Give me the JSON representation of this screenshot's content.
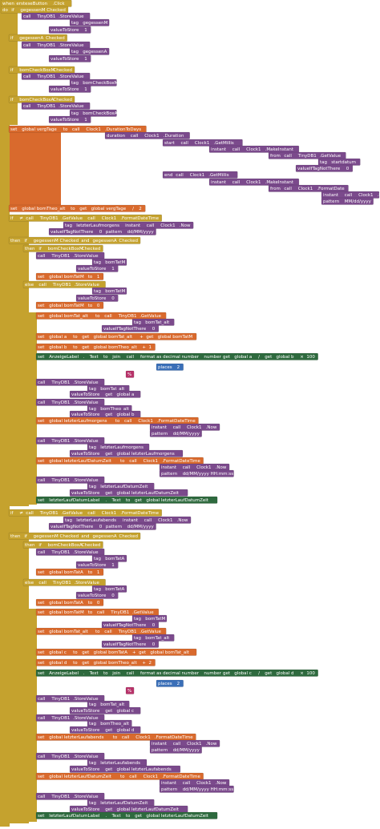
{
  "rows": [
    [
      "when",
      "ersteseButton",
      ".Click"
    ],
    [
      "do",
      "if",
      "gegessenM",
      "Checked"
    ],
    [
      "call",
      "TinyDB1",
      ".StoreValue"
    ],
    [
      "tag",
      "gegessenM"
    ],
    [
      "valueToStore",
      "1"
    ],
    [
      "if",
      "gegessenA",
      "Checked"
    ],
    [
      "call",
      "TinyDB1",
      ".StoreValue"
    ],
    [
      "tag",
      "gegessenA"
    ],
    [
      "valueToStore",
      "1"
    ],
    [
      "if",
      "bomCheckBoxM",
      "Checked"
    ],
    [
      "call",
      "TinyDB1",
      ".StoreValue"
    ],
    [
      "tag",
      "bomCheckBoxM"
    ],
    [
      "valueToStore",
      "1"
    ],
    [
      "if",
      "bomCheckBoxA",
      "Checked"
    ],
    [
      "call",
      "TinyDB1",
      ".StoreValue"
    ],
    [
      "tag",
      "bomCheckBoxA"
    ],
    [
      "valueToStore",
      "1"
    ],
    [
      "set",
      "global vergTage",
      "to",
      "call",
      "Clock1",
      ".DurationToDays"
    ],
    [
      "duration",
      "call",
      "Clock1",
      ".Duration"
    ],
    [
      "start",
      "call",
      "Clock1",
      ".GetMillis"
    ],
    [
      "instant",
      "call",
      "Clock1",
      ".MakeInstant"
    ],
    [
      "from",
      "call",
      "TinyDB1",
      ".GetValue"
    ],
    [
      "tag",
      "startdatum"
    ],
    [
      "valueIfTagNotThere",
      "0"
    ],
    [
      "end",
      "call",
      "Clock1",
      ".GetMillis"
    ],
    [
      "instant",
      "call",
      "Clock1",
      ".MakeInstant"
    ],
    [
      "from",
      "call",
      "Clock1",
      ".FormatDate"
    ],
    [
      "instant",
      "call",
      "Clock1",
      ".Now"
    ],
    [
      "pattern",
      "MM/dd/yyyy"
    ],
    [
      "set",
      "global bomTheo_alt",
      "to",
      "get",
      "global vergTage",
      "/",
      "2"
    ],
    [
      "if",
      "≠",
      "call",
      "TinyDB1",
      ".GetValue",
      "call",
      "Clock1",
      ".FormatDateTime"
    ],
    [
      "tag",
      "letzterLaufmorgens",
      "instant",
      "call",
      "Clock1",
      ".Now"
    ],
    [
      "valueIfTagNotThere",
      "0",
      "pattern",
      "dd/MM/yyyy"
    ],
    [
      "then",
      "if",
      "gegessenM",
      "Checked",
      "and",
      "gegessenA",
      "Checked"
    ],
    [
      "then",
      "if",
      "bomCheckBoxM",
      "Checked"
    ],
    [
      "call",
      "TinyDB1",
      ".StoreValue"
    ],
    [
      "tag",
      "bomTatM"
    ],
    [
      "valueToStore",
      "1"
    ],
    [
      "set",
      "global bomTatM",
      "to",
      "1"
    ],
    [
      "else",
      "call",
      "TinyDB1",
      ".StoreValue"
    ],
    [
      "tag",
      "bomTatM"
    ],
    [
      "valueToStore",
      "0"
    ],
    [
      "set",
      "global bomTatM",
      "to",
      "0"
    ],
    [
      "set",
      "global bomTat_alt",
      "to",
      "call",
      "TinyDB1",
      ".GetValue"
    ],
    [
      "tag",
      "bomTat_alt"
    ],
    [
      "valueIfTagNotThere",
      "0"
    ],
    [
      "set",
      "global a",
      "to",
      "get",
      "global bomTat_alt",
      "+",
      "get",
      "global bomTatM"
    ],
    [
      "set",
      "global b",
      "to",
      "get",
      "global bomTheo_alt",
      "+",
      "1"
    ],
    [
      "set",
      "AnzeigeLabel",
      ".",
      "Text",
      "to",
      "join",
      "call",
      "format as decimal number",
      "number",
      "get",
      "global a",
      "/",
      "get",
      "global b",
      "×",
      "100"
    ],
    [
      "places",
      "2"
    ],
    [
      "%"
    ],
    [
      "call",
      "TinyDB1",
      ".StoreValue"
    ],
    [
      "tag",
      "bomTat_alt"
    ],
    [
      "valueToStore",
      "get",
      "global a"
    ],
    [
      "call",
      "TinyDB1",
      ".StoreValue"
    ],
    [
      "tag",
      "bomTheo_alt"
    ],
    [
      "valueToStore",
      "get",
      "global b"
    ],
    [
      "set",
      "global letzterLaufmorgens",
      "to",
      "call",
      "Clock1",
      ".FormatDateTime"
    ],
    [
      "instant",
      "call",
      "Clock1",
      ".Now"
    ],
    [
      "pattern",
      "dd/MM/yyyy"
    ],
    [
      "call",
      "TinyDB1",
      ".StoreValue"
    ],
    [
      "tag",
      "letzterLaufmorgens"
    ],
    [
      "valueToStore",
      "get",
      "global letzterLaufmorgens"
    ],
    [
      "set",
      "global letzterLaufDatumZeit",
      "to",
      "call",
      "Clock1",
      ".FormatDateTime"
    ],
    [
      "instant",
      "call",
      "Clock1",
      ".Now"
    ],
    [
      "pattern",
      "dd/MM/yyyy HH:mm:ss"
    ],
    [
      "call",
      "TinyDB1",
      ".StoreValue"
    ],
    [
      "tag",
      "letzterLaufDatumZeit"
    ],
    [
      "valueToStore",
      "get",
      "global letzterLaufDatumZeit"
    ],
    [
      "set",
      "letzterLaufDatumLabel",
      ".",
      "Text",
      "to",
      "get",
      "global letzterLaufDatumZeit"
    ],
    [
      "if",
      "≠",
      "call",
      "TinyDB1",
      ".GetValue",
      "call",
      "Clock1",
      ".FormatDateTime"
    ],
    [
      "tag",
      "letzterLaufabends",
      "instant",
      "call",
      "Clock1",
      ".Now"
    ],
    [
      "valueIfTagNotThere",
      "0",
      "pattern",
      "dd/MM/yyyy"
    ],
    [
      "then",
      "if",
      "gegessenM",
      "Checked",
      "and",
      "gegessenA",
      "Checked"
    ],
    [
      "then",
      "if",
      "bomCheckBoxA",
      "Checked"
    ],
    [
      "call",
      "TinyDB1",
      ".StoreValue"
    ],
    [
      "tag",
      "bomTatA"
    ],
    [
      "valueToStore",
      "1"
    ],
    [
      "set",
      "global bomTatA",
      "to",
      "1"
    ],
    [
      "else",
      "call",
      "TinyDB1",
      ".StoreValue"
    ],
    [
      "tag",
      "bomTatA"
    ],
    [
      "valueToStore",
      "0"
    ],
    [
      "set",
      "global bomTatA",
      "to",
      "0"
    ],
    [
      "set",
      "global bomTatM",
      "to",
      "call",
      "TinyDB1",
      ".GetValue"
    ],
    [
      "tag",
      "bomTatM"
    ],
    [
      "valueIfTagNotThere",
      "0"
    ],
    [
      "set",
      "global bomTat_alt",
      "to",
      "call",
      "TinyDB1",
      ".GetValue"
    ],
    [
      "tag",
      "bomTat_alt"
    ],
    [
      "valueIfTagNotThere",
      "0"
    ],
    [
      "set",
      "global c",
      "to",
      "get",
      "global bomTatA",
      "+",
      "get",
      "global bomTat_alt"
    ],
    [
      "set",
      "global d",
      "to",
      "get",
      "global bomTheo_alt",
      "+",
      "2"
    ],
    [
      "set",
      "AnzeigeLabel",
      ".",
      "Text",
      "to",
      "join",
      "call",
      "format as decimal number",
      "number",
      "get",
      "global c",
      "/",
      "get",
      "global d",
      "×",
      "100"
    ],
    [
      "places",
      "2"
    ],
    [
      "%"
    ],
    [
      "call",
      "TinyDB1",
      ".StoreValue"
    ],
    [
      "tag",
      "bomTat_alt"
    ],
    [
      "valueToStore",
      "get",
      "global c"
    ],
    [
      "call",
      "TinyDB1",
      ".StoreValue"
    ],
    [
      "tag",
      "bomTheo_alt"
    ],
    [
      "valueToStore",
      "get",
      "global d"
    ],
    [
      "set",
      "global letzterLaufabends",
      "to",
      "call",
      "Clock1",
      ".FormatDateTime"
    ],
    [
      "instant",
      "call",
      "Clock1",
      ".Now"
    ],
    [
      "pattern",
      "dd/MM/yyyy"
    ],
    [
      "call",
      "TinyDB1",
      ".StoreValue"
    ],
    [
      "tag",
      "letzterLaufabends"
    ],
    [
      "valueToStore",
      "get",
      "global letzterLaufabends"
    ],
    [
      "set",
      "global letzterLaufDatumZeit",
      "to",
      "call",
      "Clock1",
      ".FormatDateTime"
    ],
    [
      "instant",
      "call",
      "Clock1",
      ".Now"
    ],
    [
      "pattern",
      "dd/MM/yyyy HH:mm:ss"
    ],
    [
      "call",
      "TinyDB1",
      ".StoreValue"
    ],
    [
      "tag",
      "letzterLaufDatumZeit"
    ],
    [
      "valueToStore",
      "get",
      "global letzterLaufDatumZeit"
    ],
    [
      "set",
      "letzterLaufDatumLabel",
      ".",
      "Text",
      "to",
      "get",
      "global letzterLaufDatumZeit"
    ]
  ]
}
